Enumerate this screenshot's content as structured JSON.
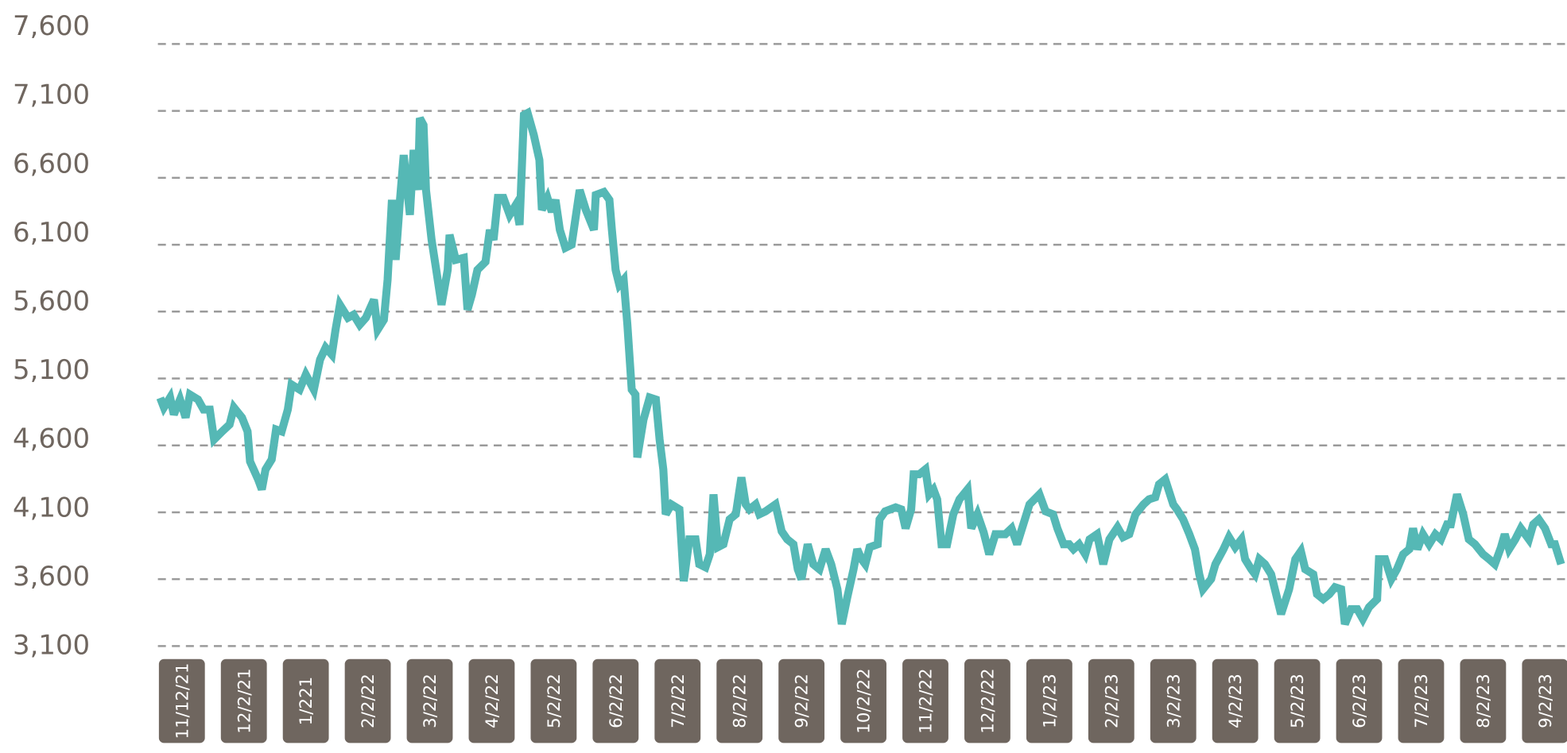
{
  "chart_data": {
    "type": "line",
    "categories": [
      "11/12/21",
      "12/2/21",
      "1/221",
      "2/2/22",
      "3/2/22",
      "4/2/22",
      "5/2/22",
      "6/2/22",
      "7/2/22",
      "8/2/22",
      "9/2/22",
      "10/2/22",
      "11/2/22",
      "12/2/22",
      "1/2/23",
      "2/2/23",
      "3/2/23",
      "4/2/23",
      "5/2/23",
      "6/2/23",
      "7/2/23",
      "8/2/23",
      "9/2/23"
    ],
    "ylim": [
      3100,
      7600
    ],
    "yticks": [
      {
        "value": 3100,
        "label": "3,100"
      },
      {
        "value": 3600,
        "label": "3,600"
      },
      {
        "value": 4100,
        "label": "4,100"
      },
      {
        "value": 4600,
        "label": "4,600"
      },
      {
        "value": 5100,
        "label": "5,100"
      },
      {
        "value": 5600,
        "label": "5,600"
      },
      {
        "value": 6100,
        "label": "6,100"
      },
      {
        "value": 6600,
        "label": "6,600"
      },
      {
        "value": 7100,
        "label": "7,100"
      },
      {
        "value": 7600,
        "label": "7,600"
      }
    ],
    "grid": true,
    "series": [
      {
        "color": "#55b8b5",
        "x": [
          -0.35,
          -0.29,
          -0.19,
          -0.13,
          -0.03,
          0.06,
          0.13,
          0.26,
          0.35,
          0.45,
          0.52,
          0.65,
          0.77,
          0.84,
          0.97,
          1.06,
          1.1,
          1.23,
          1.29,
          1.35,
          1.45,
          1.52,
          1.61,
          1.71,
          1.77,
          1.9,
          2.0,
          2.13,
          2.23,
          2.32,
          2.42,
          2.48,
          2.55,
          2.68,
          2.77,
          2.87,
          2.97,
          3.1,
          3.16,
          3.26,
          3.32,
          3.39,
          3.45,
          3.52,
          3.58,
          3.68,
          3.74,
          3.81,
          3.84,
          3.9,
          3.94,
          4.03,
          4.1,
          4.19,
          4.29,
          4.32,
          4.42,
          4.55,
          4.61,
          4.68,
          4.77,
          4.9,
          4.97,
          5.03,
          5.1,
          5.19,
          5.29,
          5.39,
          5.45,
          5.52,
          5.58,
          5.68,
          5.77,
          5.81,
          5.9,
          5.97,
          6.03,
          6.1,
          6.19,
          6.29,
          6.42,
          6.52,
          6.65,
          6.68,
          6.81,
          6.9,
          6.94,
          7.0,
          7.06,
          7.13,
          7.19,
          7.26,
          7.32,
          7.35,
          7.45,
          7.55,
          7.65,
          7.71,
          7.77,
          7.81,
          7.9,
          8.03,
          8.1,
          8.19,
          8.29,
          8.35,
          8.45,
          8.52,
          8.58,
          8.65,
          8.74,
          8.84,
          8.94,
          9.03,
          9.1,
          9.16,
          9.26,
          9.32,
          9.42,
          9.58,
          9.68,
          9.77,
          9.87,
          9.94,
          10.0,
          10.1,
          10.19,
          10.29,
          10.39,
          10.48,
          10.58,
          10.65,
          10.74,
          10.84,
          10.9,
          10.97,
          11.03,
          11.1,
          11.23,
          11.26,
          11.35,
          11.52,
          11.61,
          11.68,
          11.77,
          11.81,
          11.9,
          12.0,
          12.06,
          12.13,
          12.19,
          12.26,
          12.35,
          12.45,
          12.55,
          12.68,
          12.74,
          12.84,
          12.94,
          13.03,
          13.13,
          13.29,
          13.39,
          13.48,
          13.58,
          13.68,
          13.84,
          13.94,
          14.06,
          14.13,
          14.23,
          14.32,
          14.39,
          14.48,
          14.58,
          14.65,
          14.77,
          14.87,
          14.97,
          15.1,
          15.19,
          15.29,
          15.39,
          15.52,
          15.61,
          15.71,
          15.77,
          15.87,
          16.0,
          16.06,
          16.16,
          16.26,
          16.35,
          16.42,
          16.48,
          16.61,
          16.68,
          16.81,
          16.9,
          17.0,
          17.1,
          17.16,
          17.26,
          17.32,
          17.39,
          17.48,
          17.58,
          17.68,
          17.74,
          17.87,
          17.97,
          18.06,
          18.13,
          18.26,
          18.32,
          18.42,
          18.52,
          18.61,
          18.71,
          18.77,
          18.87,
          18.97,
          19.06,
          19.16,
          19.29,
          19.32,
          19.42,
          19.52,
          19.61,
          19.71,
          19.81,
          19.87,
          19.94,
          20.03,
          20.13,
          20.23,
          20.32,
          20.42,
          20.48,
          20.58,
          20.68,
          20.77,
          20.87,
          21.0,
          21.1,
          21.19,
          21.29,
          21.35,
          21.42,
          21.52,
          21.61,
          21.74,
          21.81,
          21.9,
          22.0,
          22.1,
          22.16,
          22.26
        ],
        "values": [
          4955,
          4883,
          4958,
          4831,
          4943,
          4808,
          4980,
          4943,
          4868,
          4868,
          4644,
          4704,
          4756,
          4883,
          4808,
          4704,
          4480,
          4346,
          4271,
          4420,
          4495,
          4719,
          4704,
          4868,
          5055,
          5017,
          5129,
          5017,
          5241,
          5331,
          5278,
          5465,
          5651,
          5554,
          5577,
          5502,
          5554,
          5689,
          5465,
          5539,
          5838,
          6435,
          5987,
          6435,
          6770,
          6323,
          6808,
          6509,
          7046,
          6994,
          6509,
          6136,
          5927,
          5651,
          5912,
          6174,
          5987,
          6002,
          5614,
          5726,
          5912,
          5972,
          6211,
          6136,
          6450,
          6450,
          6323,
          6398,
          6248,
          7069,
          7084,
          6920,
          6733,
          6360,
          6450,
          6345,
          6435,
          6211,
          6077,
          6100,
          6509,
          6360,
          6211,
          6472,
          6494,
          6435,
          6211,
          5912,
          5800,
          5838,
          5502,
          5017,
          4980,
          4510,
          4793,
          4958,
          4943,
          4644,
          4420,
          4085,
          4159,
          4122,
          3585,
          3898,
          3898,
          3712,
          3689,
          3786,
          4234,
          3839,
          3861,
          4047,
          4085,
          4361,
          4159,
          4122,
          4159,
          4085,
          4107,
          4159,
          3958,
          3898,
          3861,
          3674,
          3600,
          3861,
          3712,
          3674,
          3824,
          3712,
          3525,
          3264,
          3466,
          3674,
          3824,
          3749,
          3712,
          3839,
          3861,
          4047,
          4107,
          4137,
          4122,
          3980,
          4122,
          4384,
          4384,
          4421,
          4234,
          4271,
          4197,
          3861,
          3861,
          4085,
          4197,
          4271,
          3980,
          4085,
          3950,
          3786,
          3936,
          3936,
          3980,
          3861,
          4010,
          4159,
          4234,
          4107,
          4085,
          3980,
          3861,
          3861,
          3824,
          3861,
          3786,
          3898,
          3936,
          3712,
          3898,
          3988,
          3914,
          3936,
          4085,
          4159,
          4197,
          4212,
          4309,
          4346,
          4159,
          4122,
          4047,
          3936,
          3824,
          3637,
          3525,
          3600,
          3712,
          3824,
          3914,
          3839,
          3898,
          3749,
          3674,
          3637,
          3749,
          3712,
          3637,
          3451,
          3339,
          3525,
          3749,
          3809,
          3674,
          3637,
          3488,
          3451,
          3488,
          3540,
          3525,
          3264,
          3376,
          3376,
          3302,
          3391,
          3451,
          3749,
          3749,
          3600,
          3674,
          3786,
          3824,
          3980,
          3824,
          3936,
          3861,
          3936,
          3898,
          4010,
          4010,
          4234,
          4085,
          3898,
          3861,
          3786,
          3749,
          3712,
          3839,
          3936,
          3824,
          3898,
          3980,
          3898,
          4010,
          4047,
          3980,
          3861,
          3861,
          3712
        ]
      }
    ]
  }
}
